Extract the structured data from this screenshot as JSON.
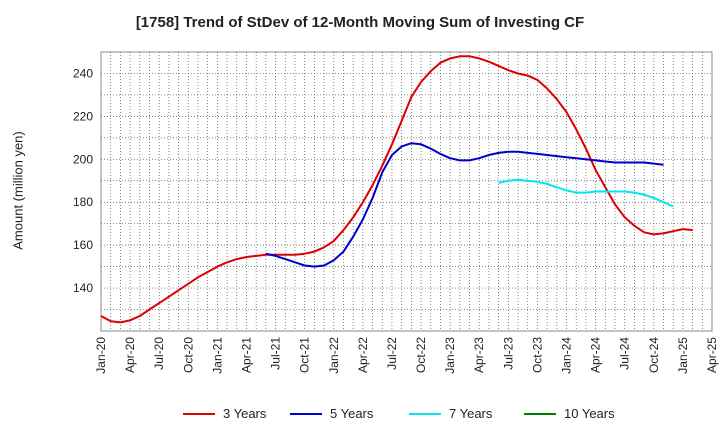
{
  "chart_data": {
    "type": "line",
    "title": "[1758]  Trend of StDev of 12-Month Moving Sum of Investing CF",
    "xlabel": "",
    "ylabel": "Amount (million yen)",
    "ylim": [
      120,
      250
    ],
    "yticks": [
      140,
      160,
      180,
      200,
      220,
      240
    ],
    "xticks": [
      "Jan-20",
      "Apr-20",
      "Jul-20",
      "Oct-20",
      "Jan-21",
      "Apr-21",
      "Jul-21",
      "Oct-21",
      "Jan-22",
      "Apr-22",
      "Jul-22",
      "Oct-22",
      "Jan-23",
      "Apr-23",
      "Jul-23",
      "Oct-23",
      "Jan-24",
      "Apr-24",
      "Jul-24",
      "Oct-24",
      "Jan-25",
      "Apr-25"
    ],
    "x_start": "2020-01",
    "x_end": "2025-04",
    "grid": true,
    "legend_position": "bottom",
    "series": [
      {
        "name": "3 Years",
        "color": "#dd0000",
        "start": "2020-01",
        "values": [
          127,
          124.5,
          124,
          125,
          127,
          130,
          133,
          136,
          139,
          142,
          145,
          147.5,
          150,
          152,
          153.5,
          154.5,
          155,
          155.5,
          155.5,
          155.5,
          155.5,
          156,
          157,
          159,
          162,
          167,
          173,
          180,
          188,
          197,
          207,
          218,
          229,
          236,
          241,
          245,
          247,
          248,
          248,
          247,
          245.5,
          243.5,
          241.5,
          240,
          239,
          237,
          233,
          228,
          222,
          214,
          205,
          195,
          187,
          179,
          173,
          169,
          166,
          165,
          165.5,
          166.5,
          167.5,
          167
        ]
      },
      {
        "name": "5 Years",
        "color": "#0000cc",
        "start": "2021-06",
        "values": [
          156,
          155,
          153.5,
          152,
          150.5,
          150,
          150.5,
          153,
          157,
          164,
          172,
          182,
          194,
          202,
          206,
          207.5,
          207,
          205,
          202.5,
          200.5,
          199.5,
          199.5,
          200.5,
          202,
          203,
          203.5,
          203.5,
          203,
          202.5,
          202,
          201.5,
          201,
          200.5,
          200,
          199.5,
          199,
          198.5,
          198.5,
          198.5,
          198.5,
          198,
          197.5
        ]
      },
      {
        "name": "7 Years",
        "color": "#00e5ee",
        "start": "2023-06",
        "values": [
          189,
          190,
          190.5,
          190,
          189.5,
          188.5,
          187,
          185.5,
          184.5,
          184.5,
          185,
          185,
          185,
          185,
          184.5,
          183.5,
          182,
          180,
          178
        ]
      },
      {
        "name": "10 Years",
        "color": "#008000",
        "start": "2025-01",
        "values": []
      }
    ]
  }
}
